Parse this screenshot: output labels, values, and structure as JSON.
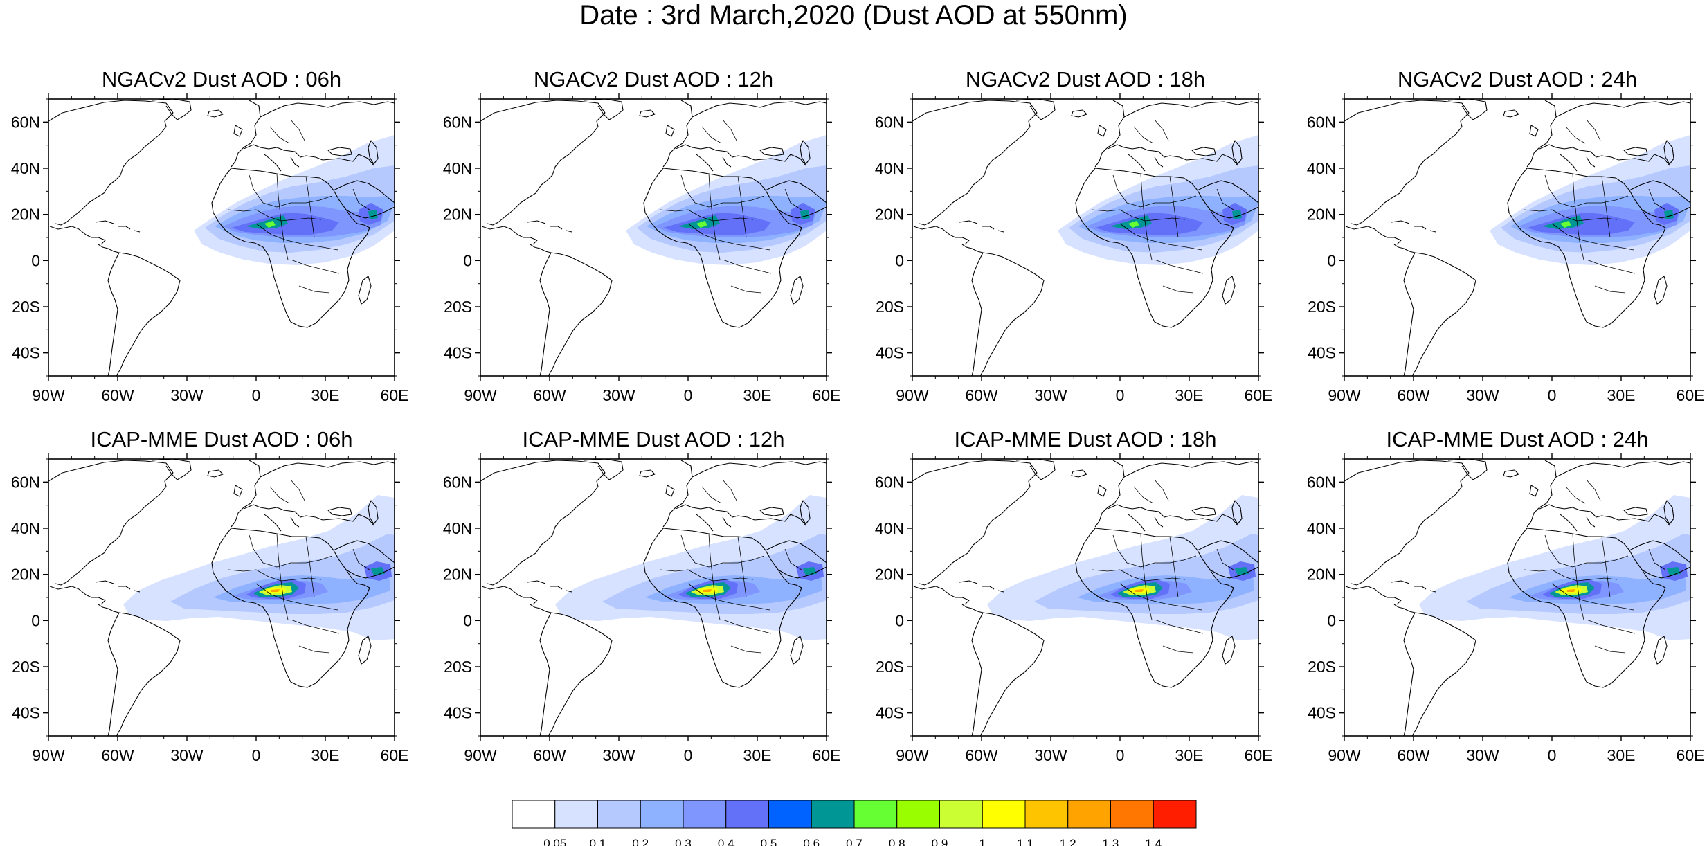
{
  "title": "Date : 3rd March,2020 (Dust AOD at 550nm)",
  "map_extent": {
    "lon": [
      -90,
      60
    ],
    "lat": [
      -50,
      70
    ]
  },
  "lat_ticks": [
    {
      "value": 60,
      "label": "60N"
    },
    {
      "value": 40,
      "label": "40N"
    },
    {
      "value": 20,
      "label": "20N"
    },
    {
      "value": 0,
      "label": "0"
    },
    {
      "value": -20,
      "label": "20S"
    },
    {
      "value": -40,
      "label": "40S"
    }
  ],
  "lon_ticks": [
    {
      "value": -90,
      "label": "90W"
    },
    {
      "value": -60,
      "label": "60W"
    },
    {
      "value": -30,
      "label": "30W"
    },
    {
      "value": 0,
      "label": "0"
    },
    {
      "value": 30,
      "label": "30E"
    },
    {
      "value": 60,
      "label": "60E"
    }
  ],
  "panels": [
    {
      "title": "NGACv2 Dust AOD : 06h",
      "row": 0,
      "col": 0
    },
    {
      "title": "NGACv2 Dust AOD : 12h",
      "row": 0,
      "col": 1
    },
    {
      "title": "NGACv2 Dust AOD : 18h",
      "row": 0,
      "col": 2
    },
    {
      "title": "NGACv2 Dust AOD : 24h",
      "row": 0,
      "col": 3
    },
    {
      "title": "ICAP-MME Dust AOD : 06h",
      "row": 1,
      "col": 0
    },
    {
      "title": "ICAP-MME Dust AOD : 12h",
      "row": 1,
      "col": 1
    },
    {
      "title": "ICAP-MME Dust AOD : 18h",
      "row": 1,
      "col": 2
    },
    {
      "title": "ICAP-MME Dust AOD : 24h",
      "row": 1,
      "col": 3
    }
  ],
  "colorbar": {
    "levels": [
      "0.05",
      "0.1",
      "0.2",
      "0.3",
      "0.4",
      "0.5",
      "0.6",
      "0.7",
      "0.8",
      "0.9",
      "1",
      "1.1",
      "1.2",
      "1.3",
      "1.4"
    ],
    "colors": [
      "#ffffff",
      "#d6e2ff",
      "#b5c9ff",
      "#8eb2ff",
      "#7f96ff",
      "#6370f8",
      "#0063ff",
      "#009696",
      "#66ff33",
      "#99ff00",
      "#ccff33",
      "#ffff00",
      "#ffc400",
      "#ffa300",
      "#ff7700",
      "#ff1f00"
    ]
  },
  "map_colors": {
    "land_outline": "#000000",
    "ocean": "#ffffff"
  }
}
